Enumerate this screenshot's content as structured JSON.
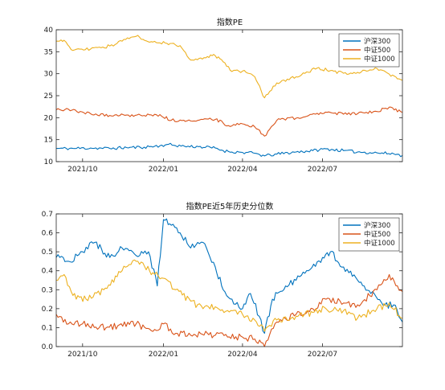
{
  "chart_data": [
    {
      "type": "line",
      "title": "指数PE",
      "xlabel": "",
      "ylabel": "",
      "x_range": [
        "2021-09-01",
        "2022-09-30"
      ],
      "x_ticks": [
        {
          "date": "2021-10-01",
          "label": "2021/10"
        },
        {
          "date": "2022-01-01",
          "label": "2022/01"
        },
        {
          "date": "2022-04-01",
          "label": "2022/04"
        },
        {
          "date": "2022-07-01",
          "label": "2022/07"
        }
      ],
      "ylim": [
        10,
        40
      ],
      "y_ticks": [
        10,
        15,
        20,
        25,
        30,
        35,
        40
      ],
      "grid": false,
      "legend_position": "top-right",
      "series": [
        {
          "name": "沪深300",
          "color": "#0072BD",
          "dates": [
            "2021-09-01",
            "2021-09-20",
            "2021-10-10",
            "2021-11-01",
            "2021-11-20",
            "2021-12-10",
            "2021-12-28",
            "2022-01-05",
            "2022-01-25",
            "2022-02-10",
            "2022-03-01",
            "2022-03-10",
            "2022-03-16",
            "2022-04-01",
            "2022-04-15",
            "2022-04-26",
            "2022-05-10",
            "2022-06-01",
            "2022-06-20",
            "2022-07-05",
            "2022-07-25",
            "2022-08-10",
            "2022-09-01",
            "2022-09-20",
            "2022-09-30"
          ],
          "values": [
            13.0,
            13.0,
            13.1,
            13.0,
            13.2,
            13.3,
            13.6,
            13.9,
            13.5,
            13.4,
            13.1,
            12.5,
            12.3,
            12.1,
            11.9,
            11.3,
            11.7,
            12.2,
            12.5,
            12.9,
            12.5,
            12.2,
            12.0,
            11.8,
            11.4
          ]
        },
        {
          "name": "中证500",
          "color": "#D95319",
          "dates": [
            "2021-09-01",
            "2021-09-15",
            "2021-10-10",
            "2021-11-01",
            "2021-11-20",
            "2021-12-10",
            "2021-12-28",
            "2022-01-10",
            "2022-01-28",
            "2022-02-15",
            "2022-03-01",
            "2022-03-10",
            "2022-03-16",
            "2022-04-01",
            "2022-04-15",
            "2022-04-26",
            "2022-05-10",
            "2022-06-01",
            "2022-06-25",
            "2022-07-10",
            "2022-07-25",
            "2022-08-10",
            "2022-09-01",
            "2022-09-15",
            "2022-09-30"
          ],
          "values": [
            21.8,
            21.9,
            20.9,
            20.5,
            20.6,
            20.5,
            20.7,
            19.4,
            19.3,
            19.6,
            19.6,
            18.8,
            18.2,
            18.6,
            17.9,
            15.8,
            19.4,
            19.9,
            21.0,
            21.2,
            20.8,
            20.9,
            21.4,
            22.4,
            21.2
          ]
        },
        {
          "name": "中证1000",
          "color": "#EDB120",
          "dates": [
            "2021-09-01",
            "2021-09-10",
            "2021-09-20",
            "2021-10-10",
            "2021-11-01",
            "2021-11-15",
            "2021-12-01",
            "2021-12-20",
            "2022-01-05",
            "2022-01-20",
            "2022-02-01",
            "2022-02-20",
            "2022-03-01",
            "2022-03-10",
            "2022-03-20",
            "2022-04-01",
            "2022-04-15",
            "2022-04-26",
            "2022-05-10",
            "2022-06-01",
            "2022-06-25",
            "2022-07-10",
            "2022-07-25",
            "2022-08-10",
            "2022-09-01",
            "2022-09-15",
            "2022-09-30"
          ],
          "values": [
            37.4,
            37.6,
            35.3,
            35.6,
            36.3,
            37.4,
            38.5,
            37.2,
            36.9,
            36.4,
            33.1,
            33.9,
            34.1,
            32.7,
            30.5,
            30.6,
            29.3,
            24.5,
            27.9,
            29.3,
            31.3,
            30.7,
            30.1,
            30.3,
            31.2,
            29.9,
            28.5
          ]
        }
      ]
    },
    {
      "type": "line",
      "title": "指数PE近5年历史分位数",
      "xlabel": "",
      "ylabel": "",
      "x_range": [
        "2021-09-01",
        "2022-09-30"
      ],
      "x_ticks": [
        {
          "date": "2021-10-01",
          "label": "2021/10"
        },
        {
          "date": "2022-01-01",
          "label": "2022/01"
        },
        {
          "date": "2022-04-01",
          "label": "2022/04"
        },
        {
          "date": "2022-07-01",
          "label": "2022/07"
        }
      ],
      "ylim": [
        0,
        0.7
      ],
      "y_ticks": [
        0,
        0.1,
        0.2,
        0.3,
        0.4,
        0.5,
        0.6,
        0.7
      ],
      "grid": false,
      "legend_position": "top-right",
      "series": [
        {
          "name": "沪深300",
          "color": "#0072BD",
          "dates": [
            "2021-09-01",
            "2021-09-15",
            "2021-10-01",
            "2021-10-15",
            "2021-11-01",
            "2021-11-15",
            "2021-12-01",
            "2021-12-15",
            "2021-12-25",
            "2022-01-01",
            "2022-01-10",
            "2022-01-20",
            "2022-02-01",
            "2022-02-15",
            "2022-03-01",
            "2022-03-10",
            "2022-03-20",
            "2022-04-01",
            "2022-04-10",
            "2022-04-20",
            "2022-04-26",
            "2022-05-05",
            "2022-05-20",
            "2022-06-01",
            "2022-06-15",
            "2022-07-01",
            "2022-07-10",
            "2022-07-25",
            "2022-08-10",
            "2022-08-25",
            "2022-09-10",
            "2022-09-20",
            "2022-09-30"
          ],
          "values": [
            0.47,
            0.45,
            0.5,
            0.55,
            0.47,
            0.52,
            0.48,
            0.5,
            0.32,
            0.67,
            0.64,
            0.6,
            0.52,
            0.55,
            0.42,
            0.3,
            0.25,
            0.2,
            0.28,
            0.16,
            0.07,
            0.25,
            0.32,
            0.35,
            0.4,
            0.47,
            0.5,
            0.42,
            0.35,
            0.28,
            0.22,
            0.22,
            0.13
          ]
        },
        {
          "name": "中证500",
          "color": "#D95319",
          "dates": [
            "2021-09-01",
            "2021-09-15",
            "2021-10-01",
            "2021-10-20",
            "2021-11-10",
            "2021-12-01",
            "2021-12-20",
            "2022-01-01",
            "2022-01-15",
            "2022-02-01",
            "2022-02-20",
            "2022-03-01",
            "2022-03-15",
            "2022-04-01",
            "2022-04-15",
            "2022-04-26",
            "2022-05-10",
            "2022-06-01",
            "2022-06-20",
            "2022-07-05",
            "2022-07-25",
            "2022-08-10",
            "2022-09-01",
            "2022-09-15",
            "2022-09-30"
          ],
          "values": [
            0.17,
            0.12,
            0.12,
            0.1,
            0.11,
            0.12,
            0.08,
            0.12,
            0.07,
            0.06,
            0.07,
            0.06,
            0.05,
            0.05,
            0.04,
            0.0,
            0.13,
            0.17,
            0.2,
            0.25,
            0.23,
            0.22,
            0.3,
            0.38,
            0.29
          ]
        },
        {
          "name": "中证1000",
          "color": "#EDB120",
          "dates": [
            "2021-09-01",
            "2021-09-10",
            "2021-09-20",
            "2021-10-05",
            "2021-10-25",
            "2021-11-15",
            "2021-12-01",
            "2021-12-20",
            "2022-01-01",
            "2022-01-15",
            "2022-02-01",
            "2022-02-15",
            "2022-03-01",
            "2022-03-15",
            "2022-04-01",
            "2022-04-15",
            "2022-04-26",
            "2022-05-10",
            "2022-06-01",
            "2022-06-20",
            "2022-07-05",
            "2022-07-25",
            "2022-08-10",
            "2022-09-01",
            "2022-09-15",
            "2022-09-30"
          ],
          "values": [
            0.35,
            0.38,
            0.27,
            0.25,
            0.3,
            0.4,
            0.45,
            0.39,
            0.36,
            0.3,
            0.24,
            0.2,
            0.21,
            0.19,
            0.17,
            0.14,
            0.08,
            0.14,
            0.16,
            0.18,
            0.2,
            0.19,
            0.15,
            0.2,
            0.23,
            0.15
          ]
        }
      ]
    }
  ]
}
